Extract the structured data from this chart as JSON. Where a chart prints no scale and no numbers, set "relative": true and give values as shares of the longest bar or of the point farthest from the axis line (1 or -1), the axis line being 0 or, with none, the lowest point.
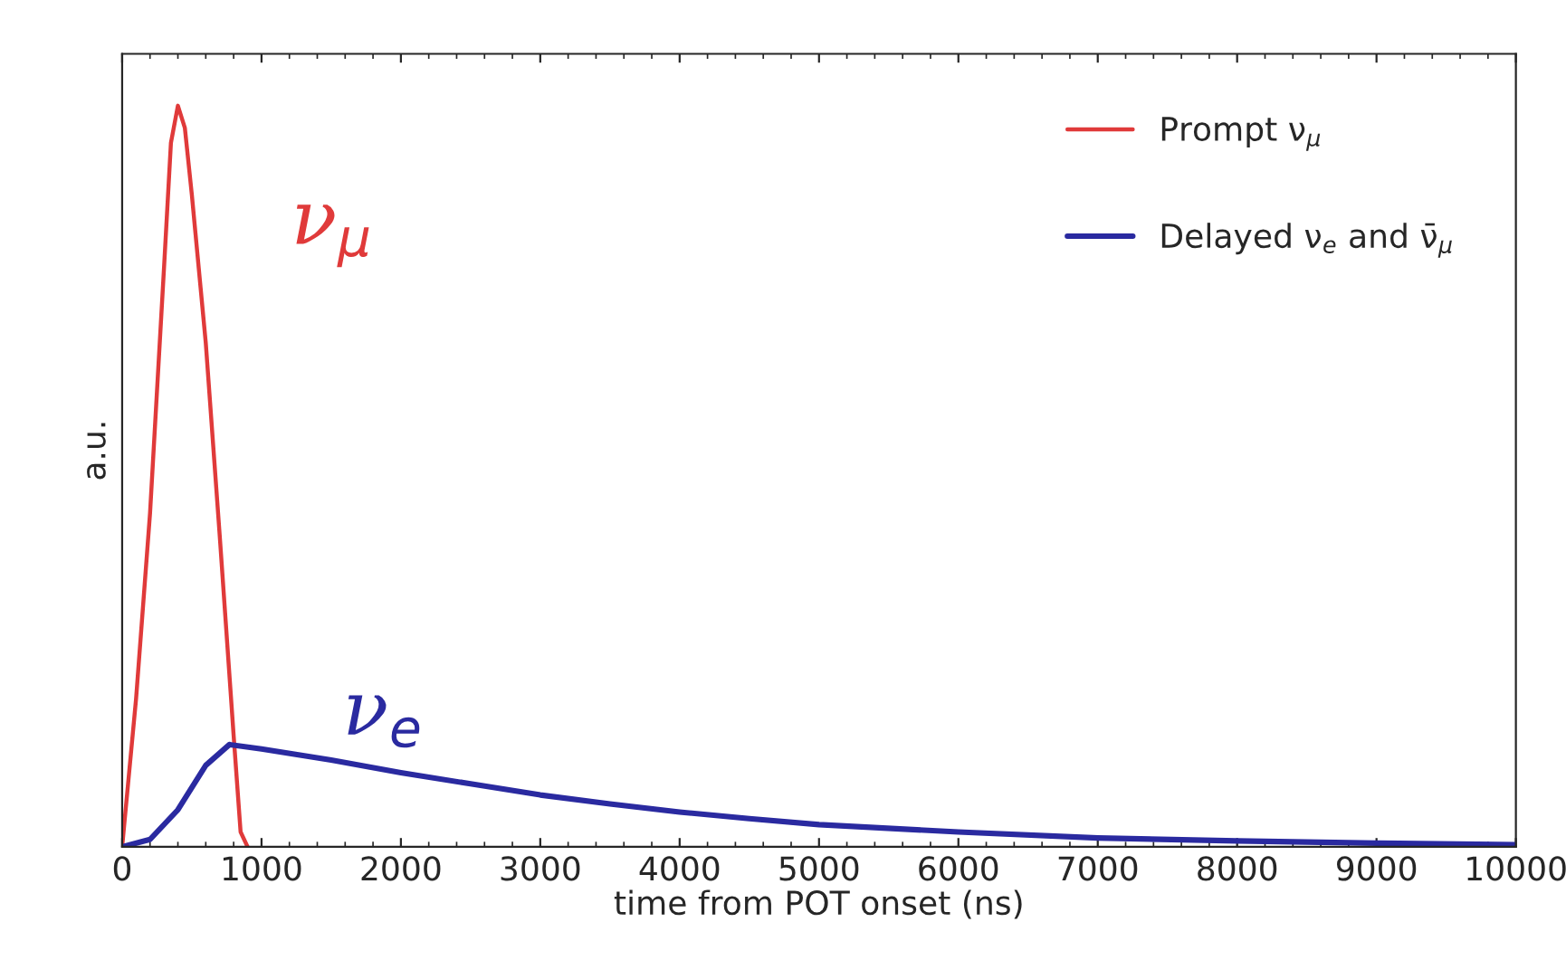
{
  "chart_data": {
    "type": "line",
    "relative": true,
    "xlabel": "time from POT onset (ns)",
    "ylabel": "a.u.",
    "xlim": [
      0,
      10000
    ],
    "xticks": [
      0,
      1000,
      2000,
      3000,
      4000,
      5000,
      6000,
      7000,
      8000,
      9000,
      10000
    ],
    "tick_labels": "x",
    "legend": "top right",
    "grid": false,
    "marker": "none",
    "line_style": "solid",
    "series": [
      {
        "name": "Prompt ν$_{μ}$",
        "color": "#e03a3a",
        "x": [
          0,
          100,
          200,
          300,
          350,
          400,
          450,
          500,
          600,
          700,
          800,
          850,
          900
        ],
        "values": [
          0,
          0.2,
          0.45,
          0.78,
          0.95,
          1,
          0.97,
          0.88,
          0.68,
          0.42,
          0.15,
          0.02,
          0
        ]
      },
      {
        "name": "Delayed ν$_{e}$ and ν̄$_{μ}$",
        "color": "#2a2aa0",
        "x": [
          0,
          200,
          400,
          600,
          770,
          1000,
          1500,
          2000,
          2500,
          3000,
          3500,
          4000,
          4500,
          5000,
          6000,
          7000,
          8000,
          9000,
          10000
        ],
        "values": [
          0,
          0.01,
          0.05,
          0.11,
          0.138,
          0.132,
          0.117,
          0.1,
          0.085,
          0.07,
          0.058,
          0.047,
          0.038,
          0.03,
          0.02,
          0.012,
          0.008,
          0.005,
          0.003
        ]
      }
    ],
    "annotations": [
      "ν$_{μ}$",
      "ν$_{e}$"
    ]
  }
}
